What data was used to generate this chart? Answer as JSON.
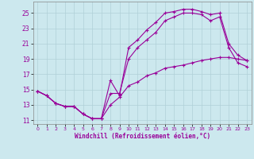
{
  "xlabel": "Windchill (Refroidissement éolien,°C)",
  "bg_color": "#cce8ee",
  "line_color": "#990099",
  "xlim": [
    -0.5,
    23.5
  ],
  "ylim": [
    10.5,
    26.5
  ],
  "xticks": [
    0,
    1,
    2,
    3,
    4,
    5,
    6,
    7,
    8,
    9,
    10,
    11,
    12,
    13,
    14,
    15,
    16,
    17,
    18,
    19,
    20,
    21,
    22,
    23
  ],
  "yticks": [
    11,
    13,
    15,
    17,
    19,
    21,
    23,
    25
  ],
  "grid_color": "#b0d0d8",
  "series1_x": [
    0,
    1,
    2,
    3,
    4,
    5,
    6,
    7,
    8,
    9,
    10,
    11,
    12,
    13,
    14,
    15,
    16,
    17,
    18,
    19,
    20,
    21,
    22,
    23
  ],
  "series1_y": [
    14.8,
    14.2,
    13.2,
    12.8,
    12.8,
    11.8,
    11.2,
    11.2,
    16.2,
    14.2,
    20.5,
    21.5,
    22.8,
    23.8,
    25.0,
    25.2,
    25.5,
    25.5,
    25.2,
    24.8,
    25.0,
    21.0,
    19.5,
    18.8
  ],
  "series2_x": [
    0,
    1,
    2,
    3,
    4,
    5,
    6,
    7,
    8,
    9,
    10,
    11,
    12,
    13,
    14,
    15,
    16,
    17,
    18,
    19,
    20,
    21,
    22,
    23
  ],
  "series2_y": [
    14.8,
    14.2,
    13.2,
    12.8,
    12.8,
    11.8,
    11.2,
    11.2,
    14.5,
    14.5,
    19.0,
    20.5,
    21.5,
    22.5,
    24.0,
    24.5,
    25.0,
    25.0,
    24.8,
    24.0,
    24.5,
    20.5,
    18.5,
    18.0
  ],
  "series3_x": [
    0,
    1,
    2,
    3,
    4,
    5,
    6,
    7,
    8,
    9,
    10,
    11,
    12,
    13,
    14,
    15,
    16,
    17,
    18,
    19,
    20,
    21,
    22,
    23
  ],
  "series3_y": [
    14.8,
    14.2,
    13.2,
    12.8,
    12.8,
    11.8,
    11.2,
    11.2,
    13.0,
    14.0,
    15.5,
    16.0,
    16.8,
    17.2,
    17.8,
    18.0,
    18.2,
    18.5,
    18.8,
    19.0,
    19.2,
    19.2,
    19.0,
    18.8
  ]
}
